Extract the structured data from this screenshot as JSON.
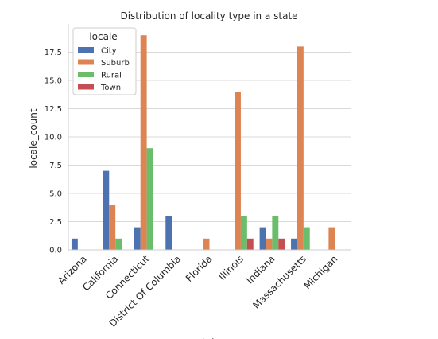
{
  "chart_data": {
    "type": "bar",
    "title": "Distribution of locality type in a state",
    "xlabel": "state",
    "ylabel": "locale_count",
    "ylim": [
      0,
      20
    ],
    "yticks": [
      "0.0",
      "2.5",
      "5.0",
      "7.5",
      "10.0",
      "12.5",
      "15.0",
      "17.5"
    ],
    "ytick_values": [
      0,
      2.5,
      5,
      7.5,
      10,
      12.5,
      15,
      17.5
    ],
    "grid": "horizontal",
    "legend": {
      "title": "locale",
      "placement": "top-left"
    },
    "categories": [
      "Arizona",
      "California",
      "Connecticut",
      "District Of Columbia",
      "Florida",
      "Illinois",
      "Indiana",
      "Massachusetts",
      "Michigan"
    ],
    "series": [
      {
        "name": "City",
        "color": "#4c72b0",
        "values": [
          1,
          7,
          2,
          3,
          0,
          0,
          2,
          1,
          0
        ]
      },
      {
        "name": "Suburb",
        "color": "#dd8452",
        "values": [
          0,
          4,
          19,
          0,
          1,
          14,
          1,
          18,
          2
        ]
      },
      {
        "name": "Rural",
        "color": "#6abd6a",
        "values": [
          0,
          1,
          9,
          0,
          0,
          3,
          3,
          2,
          0
        ]
      },
      {
        "name": "Town",
        "color": "#c44e52",
        "values": [
          0,
          0,
          0,
          0,
          0,
          1,
          1,
          0,
          0
        ]
      }
    ]
  }
}
